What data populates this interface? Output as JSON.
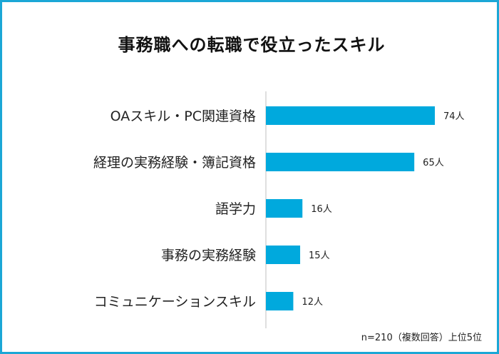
{
  "title": "事務職への転職で役立ったスキル",
  "note": "n=210（複数回答）上位5位",
  "unit_suffix": "人",
  "colors": {
    "frame": "#1ba7d6",
    "bar": "#00a9dd",
    "axis": "#bfbfbf"
  },
  "chart_data": {
    "type": "bar",
    "orientation": "horizontal",
    "categories": [
      "OAスキル・PC関連資格",
      "経理の実務経験・簿記資格",
      "語学力",
      "事務の実務経験",
      "コミュニケーションスキル"
    ],
    "values": [
      74,
      65,
      16,
      15,
      12
    ],
    "value_labels": [
      "74人",
      "65人",
      "16人",
      "15人",
      "12人"
    ],
    "xlim": [
      0,
      80
    ],
    "grid": false,
    "legend": "none"
  }
}
